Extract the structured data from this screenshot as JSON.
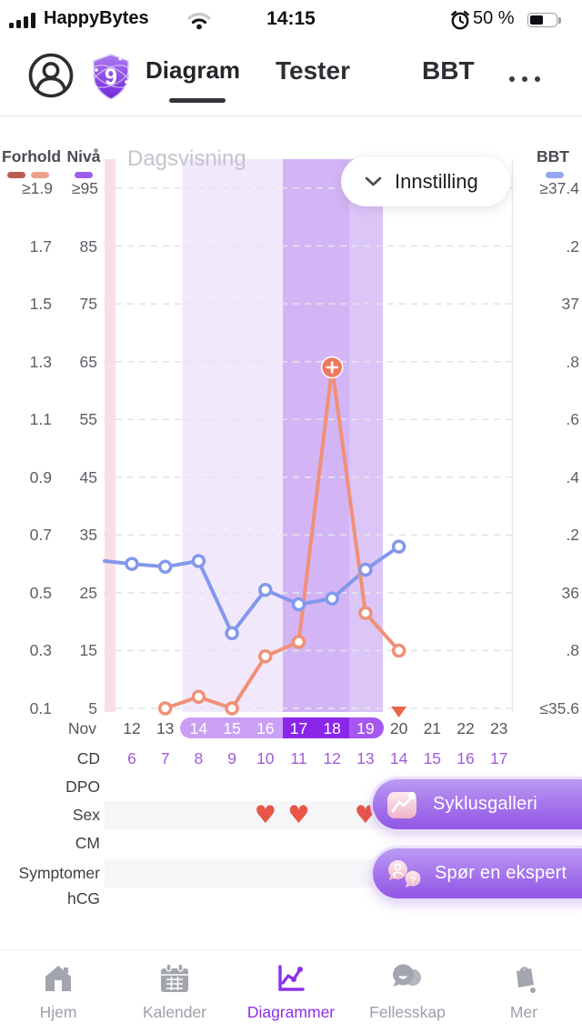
{
  "status_bar": {
    "carrier": "HappyBytes",
    "time": "14:15",
    "battery": "50 %"
  },
  "header": {
    "badge": "9",
    "tabs": [
      {
        "label": "Diagram",
        "active": true
      },
      {
        "label": "Tester",
        "active": false
      },
      {
        "label": "BBT",
        "active": false
      }
    ]
  },
  "chart": {
    "view_label": "Dagsvisning",
    "settings_label": "Innstilling",
    "legends": {
      "forhold": {
        "label": "Forhold",
        "top": "≥1.9"
      },
      "niva": {
        "label": "Nivå",
        "top": "≥95"
      },
      "bbt": {
        "label": "BBT",
        "top": "≥37.4"
      }
    },
    "forhold_ticks": [
      "1.7",
      "1.5",
      "1.3",
      "1.1",
      "0.9",
      "0.7",
      "0.5",
      "0.3",
      "0.1"
    ],
    "niva_ticks": [
      "85",
      "75",
      "65",
      "55",
      "45",
      "35",
      "25",
      "15",
      "5"
    ],
    "bbt_ticks": [
      ".2",
      "37",
      ".8",
      ".6",
      ".4",
      ".2",
      "36",
      ".8",
      "≤35.6"
    ],
    "month": "Nov"
  },
  "chart_data": {
    "type": "line",
    "x_axis": {
      "month": "Nov",
      "days": [
        12,
        13,
        14,
        15,
        16,
        17,
        18,
        19,
        20,
        21,
        22,
        23
      ]
    },
    "axes": {
      "left_forhold": {
        "label": "Forhold",
        "min": 0.1,
        "max": 1.9,
        "step": 0.2
      },
      "left_niva": {
        "label": "Nivå",
        "min": 5,
        "max": 95,
        "step": 10
      },
      "right_bbt": {
        "label": "BBT",
        "min": 35.6,
        "max": 37.4,
        "step": 0.2
      }
    },
    "grid": "dashed horizontal",
    "highlight": {
      "light_days": [
        14,
        15,
        16
      ],
      "dark_days": [
        17,
        18
      ],
      "medium_days": [
        19
      ]
    },
    "period_stripe_at_left_edge": true,
    "series": [
      {
        "name": "BBT",
        "axis": "right_bbt",
        "days": [
          12,
          13,
          14,
          15,
          16,
          17,
          18,
          19,
          20
        ],
        "values": [
          36.1,
          36.09,
          36.11,
          35.86,
          36.01,
          35.96,
          35.98,
          36.08,
          36.16
        ]
      },
      {
        "name": "LH-forhold",
        "axis": "left_forhold",
        "days": [
          13,
          14,
          15,
          16,
          17,
          18,
          19,
          20
        ],
        "values": [
          0.1,
          0.14,
          0.1,
          0.28,
          0.33,
          1.28,
          0.43,
          0.3
        ],
        "peak_day": 18
      }
    ],
    "triangle_marker_day": 20
  },
  "rows": {
    "labels": [
      "CD",
      "DPO",
      "Sex",
      "CM",
      "Symptomer",
      "hCG"
    ],
    "cd_values": [
      "6",
      "7",
      "8",
      "9",
      "10",
      "11",
      "12",
      "13",
      "14",
      "15",
      "16",
      "17"
    ],
    "sex_heart_days": [
      16,
      17,
      19
    ]
  },
  "fabs": [
    {
      "label": "Syklusgalleri"
    },
    {
      "label": "Spør en ekspert"
    }
  ],
  "nav": {
    "items": [
      {
        "label": "Hjem",
        "active": false
      },
      {
        "label": "Kalender",
        "active": false
      },
      {
        "label": "Diagrammer",
        "active": true
      },
      {
        "label": "Fellesskap",
        "active": false
      },
      {
        "label": "Mer",
        "active": false
      }
    ]
  },
  "colors": {
    "bbt_line": "#8298ec",
    "lh_line": "#f09078",
    "forhold_swatch_dark": "#bc5a52",
    "forhold_swatch_light": "#f0a18c",
    "niva_swatch": "#9d5aef",
    "bbt_swatch": "#93a6f0",
    "period_pink": "#fadee6",
    "band_light": "#f1e9fb",
    "band_dark": "#d3b5f5",
    "band_medium": "#dcc5f7",
    "pill_light": "#c9a0f4",
    "pill_dark": "#8a26e9",
    "pill_medium": "#a557ef",
    "peak_fill": "#f0785e",
    "triangle": "#e8664a",
    "heart": "#e8564a",
    "cd_text": "#a15cd6",
    "nav_active": "#8c30e8"
  }
}
